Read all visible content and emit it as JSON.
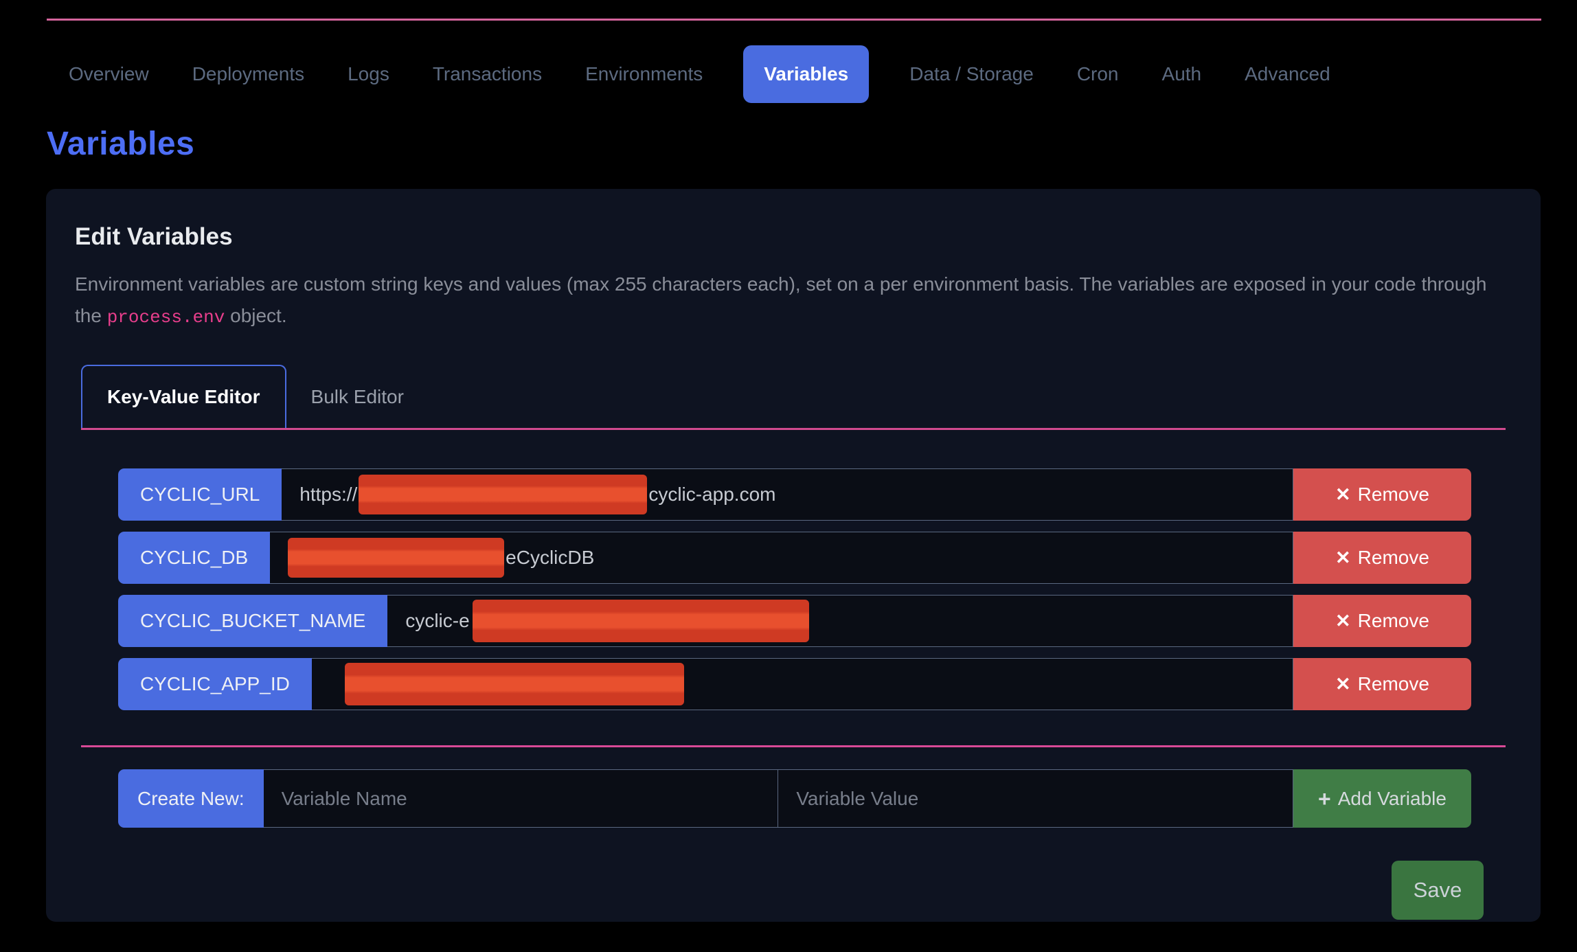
{
  "nav": {
    "items": [
      {
        "label": "Overview",
        "active": false
      },
      {
        "label": "Deployments",
        "active": false
      },
      {
        "label": "Logs",
        "active": false
      },
      {
        "label": "Transactions",
        "active": false
      },
      {
        "label": "Environments",
        "active": false
      },
      {
        "label": "Variables",
        "active": true
      },
      {
        "label": "Data / Storage",
        "active": false
      },
      {
        "label": "Cron",
        "active": false
      },
      {
        "label": "Auth",
        "active": false
      },
      {
        "label": "Advanced",
        "active": false
      }
    ]
  },
  "page": {
    "title": "Variables"
  },
  "panel": {
    "title": "Edit Variables",
    "description_part1": "Environment variables are custom string keys and values (max 255 characters each), set on a per environment basis. The variables are exposed in your code through the ",
    "description_code": "process.env",
    "description_part2": " object.",
    "tabs": [
      {
        "label": "Key-Value Editor",
        "active": true
      },
      {
        "label": "Bulk Editor",
        "active": false
      }
    ]
  },
  "variables": {
    "rows": [
      {
        "key": "CYCLIC_URL",
        "value_prefix": "https://",
        "value_suffix": "cyclic-app.com",
        "redacted": true
      },
      {
        "key": "CYCLIC_DB",
        "value_prefix": "",
        "value_suffix": "eCyclicDB",
        "redacted": true
      },
      {
        "key": "CYCLIC_BUCKET_NAME",
        "value_prefix": "cyclic-e",
        "value_suffix": "",
        "redacted": true
      },
      {
        "key": "CYCLIC_APP_ID",
        "value_prefix": "",
        "value_suffix": "",
        "redacted": true
      }
    ],
    "remove_label": "Remove",
    "remove_icon": "✕"
  },
  "create_new": {
    "label": "Create New:",
    "name_placeholder": "Variable Name",
    "value_placeholder": "Variable Value",
    "add_label": "Add Variable",
    "add_icon": "+"
  },
  "actions": {
    "save_label": "Save"
  },
  "colors": {
    "accent_blue": "#4a6ce0",
    "accent_pink": "#d4649c",
    "danger_red": "#d4504e",
    "success_green": "#3a7540",
    "redaction_red": "#e8502e"
  }
}
